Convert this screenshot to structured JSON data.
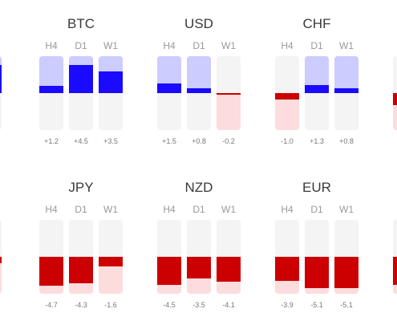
{
  "column_labels": [
    "H4",
    "D1",
    "W1"
  ],
  "colors": {
    "positive_fill": "#1a0aff",
    "positive_bg": "#ccccff",
    "negative_fill": "#cc0000",
    "negative_bg": "#fcdcdc",
    "neutral_bg": "#f4f4f4"
  },
  "scale_max": 6,
  "groups": [
    {
      "name": "BTC",
      "values": [
        1.2,
        4.5,
        3.5
      ],
      "labels": [
        "+1.2",
        "+4.5",
        "+3.5"
      ]
    },
    {
      "name": "USD",
      "values": [
        1.5,
        0.8,
        -0.2
      ],
      "labels": [
        "+1.5",
        "+0.8",
        "-0.2"
      ]
    },
    {
      "name": "CHF",
      "values": [
        -1.0,
        1.3,
        0.8
      ],
      "labels": [
        "-1.0",
        "+1.3",
        "+0.8"
      ]
    },
    {
      "name": "JPY",
      "values": [
        -4.7,
        -4.3,
        -1.6
      ],
      "labels": [
        "-4.7",
        "-4.3",
        "-1.6"
      ]
    },
    {
      "name": "NZD",
      "values": [
        -4.5,
        -3.5,
        -4.1
      ],
      "labels": [
        "-4.5",
        "-3.5",
        "-4.1"
      ]
    },
    {
      "name": "EUR",
      "values": [
        -3.9,
        -5.1,
        -5.1
      ],
      "labels": [
        "-3.9",
        "-5.1",
        "-5.1"
      ]
    }
  ],
  "edge_partials": {
    "left_top": {
      "value": 4.5
    },
    "left_bottom": {
      "value": -1.0
    },
    "right_top": {
      "value": -2.0
    },
    "right_bottom": {
      "value": -4.5
    }
  }
}
